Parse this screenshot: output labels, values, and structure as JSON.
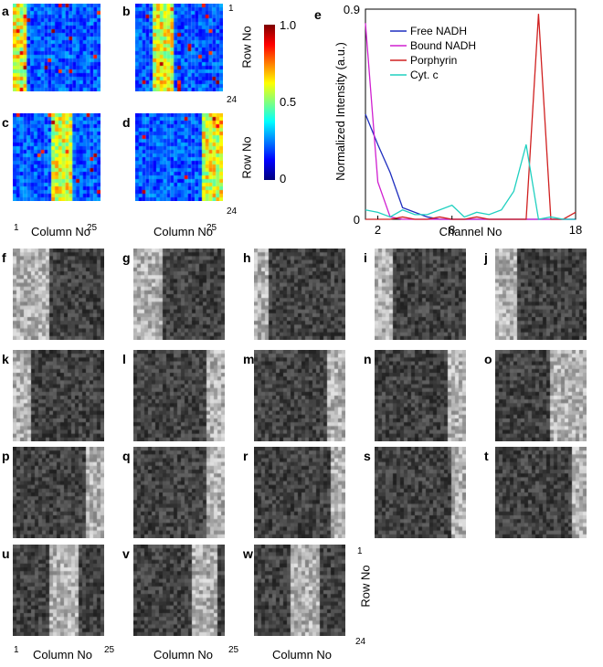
{
  "heatmap_labels": [
    "a",
    "b",
    "c",
    "d"
  ],
  "gray_labels": [
    "f",
    "g",
    "h",
    "i",
    "j",
    "k",
    "l",
    "m",
    "n",
    "o",
    "p",
    "q",
    "r",
    "s",
    "t",
    "u",
    "v",
    "w"
  ],
  "axis": {
    "column_label": "Column No",
    "row_label": "Row No",
    "col_start": "1",
    "col_end": "25",
    "row_start": "1",
    "row_end": "24"
  },
  "colorbar": {
    "ticks": [
      "1.0",
      "0.5",
      "0"
    ],
    "colormap": "jet"
  },
  "panel_e_label": "e",
  "chart_data": {
    "type": "line",
    "title": "",
    "xlabel": "Channel No",
    "ylabel": "Normalized Intensity (a.u.)",
    "xlim": [
      1,
      18
    ],
    "ylim": [
      0,
      0.9
    ],
    "xticks": [
      "2",
      "8",
      "18"
    ],
    "yticks": [
      "0",
      "0.9"
    ],
    "legend_position": "top-left",
    "x": [
      1,
      2,
      3,
      4,
      5,
      6,
      7,
      8,
      9,
      10,
      11,
      12,
      13,
      14,
      15,
      16,
      17,
      18
    ],
    "series": [
      {
        "name": "Free NADH",
        "color": "#1f2fbf",
        "values": [
          0.45,
          0.32,
          0.2,
          0.05,
          0.03,
          0.01,
          0.0,
          0.0,
          0.0,
          0.0,
          0.0,
          0.0,
          0.0,
          0.0,
          0.0,
          0.0,
          0.0,
          0.0
        ]
      },
      {
        "name": "Bound NADH",
        "color": "#d020d0",
        "values": [
          0.84,
          0.16,
          0.01,
          0.0,
          0.0,
          0.0,
          0.0,
          0.0,
          0.0,
          0.0,
          0.0,
          0.0,
          0.0,
          0.0,
          0.0,
          0.0,
          0.0,
          0.0
        ]
      },
      {
        "name": "Porphyrin",
        "color": "#d02020",
        "values": [
          0.0,
          0.0,
          0.0,
          0.01,
          0.0,
          0.0,
          0.01,
          0.0,
          0.0,
          0.01,
          0.0,
          0.0,
          0.0,
          0.0,
          0.88,
          0.0,
          0.0,
          0.03
        ]
      },
      {
        "name": "Cyt. c",
        "color": "#20d0c0",
        "values": [
          0.04,
          0.03,
          0.01,
          0.04,
          0.02,
          0.02,
          0.04,
          0.06,
          0.01,
          0.03,
          0.02,
          0.04,
          0.12,
          0.32,
          0.0,
          0.01,
          0.0,
          0.0
        ]
      }
    ]
  }
}
